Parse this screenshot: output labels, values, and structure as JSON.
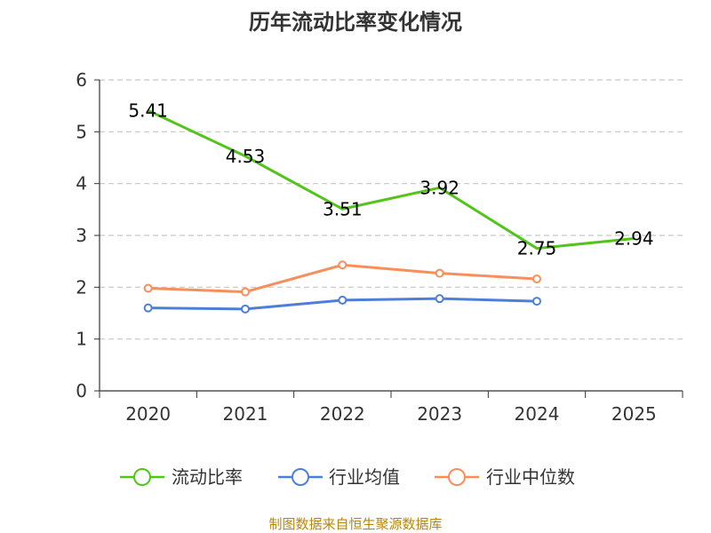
{
  "chart_data": {
    "type": "line",
    "title": "历年流动比率变化情况",
    "categories": [
      "2020",
      "2021",
      "2022",
      "2023",
      "2024",
      "2025"
    ],
    "y_ticks": [
      "0",
      "1",
      "2",
      "3",
      "4",
      "5",
      "6"
    ],
    "ylim": [
      0,
      6
    ],
    "grid": "horizontal-dashed",
    "legend_position": "bottom",
    "series": [
      {
        "name": "流动比率",
        "color": "#52c41a",
        "values": [
          5.41,
          4.53,
          3.51,
          3.92,
          2.75,
          2.94
        ],
        "labels": [
          "5.41",
          "4.53",
          "3.51",
          "3.92",
          "2.75",
          "2.94"
        ]
      },
      {
        "name": "行业均值",
        "color": "#4e7fd8",
        "values": [
          1.6,
          1.58,
          1.75,
          1.78,
          1.73,
          null
        ]
      },
      {
        "name": "行业中位数",
        "color": "#f98e5a",
        "values": [
          1.98,
          1.91,
          2.43,
          2.27,
          2.16,
          null
        ]
      }
    ],
    "source": "制图数据来自恒生聚源数据库"
  }
}
